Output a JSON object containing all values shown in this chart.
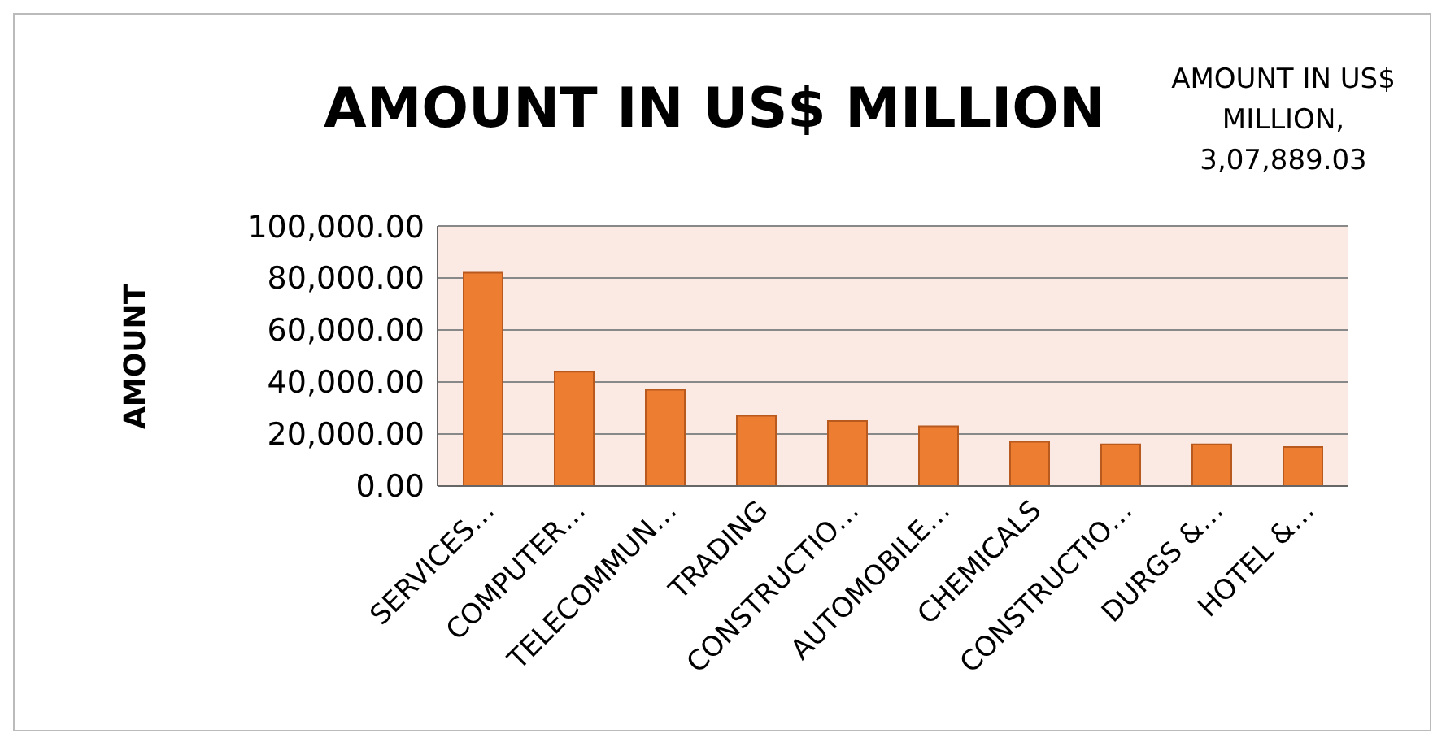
{
  "chart_data": {
    "type": "bar",
    "title": "AMOUNT IN US$ MILLION",
    "ylabel": "AMOUNT",
    "annotations": [
      "AMOUNT IN US$ MILLION, 3,07,889.03"
    ],
    "categories": [
      "SERVICES…",
      "COMPUTER…",
      "TELECOMMUN…",
      "TRADING",
      "CONSTRUCTIO…",
      "AUTOMOBILE…",
      "CHEMICALS",
      "CONSTRUCTIO…",
      "DURGS &…",
      "HOTEL &…"
    ],
    "values": [
      82000,
      44000,
      37000,
      27000,
      25000,
      23000,
      17000,
      16000,
      16000,
      15000
    ],
    "color": "#ed7d31",
    "ylim": [
      0,
      100000
    ],
    "yticks": [
      {
        "value": 0,
        "label": "0.00"
      },
      {
        "value": 20000,
        "label": "20,000.00"
      },
      {
        "value": 40000,
        "label": "40,000.00"
      },
      {
        "value": 60000,
        "label": "60,000.00"
      },
      {
        "value": 80000,
        "label": "80,000.00"
      },
      {
        "value": 100000,
        "label": "100,000.00"
      }
    ],
    "grid": "y"
  }
}
